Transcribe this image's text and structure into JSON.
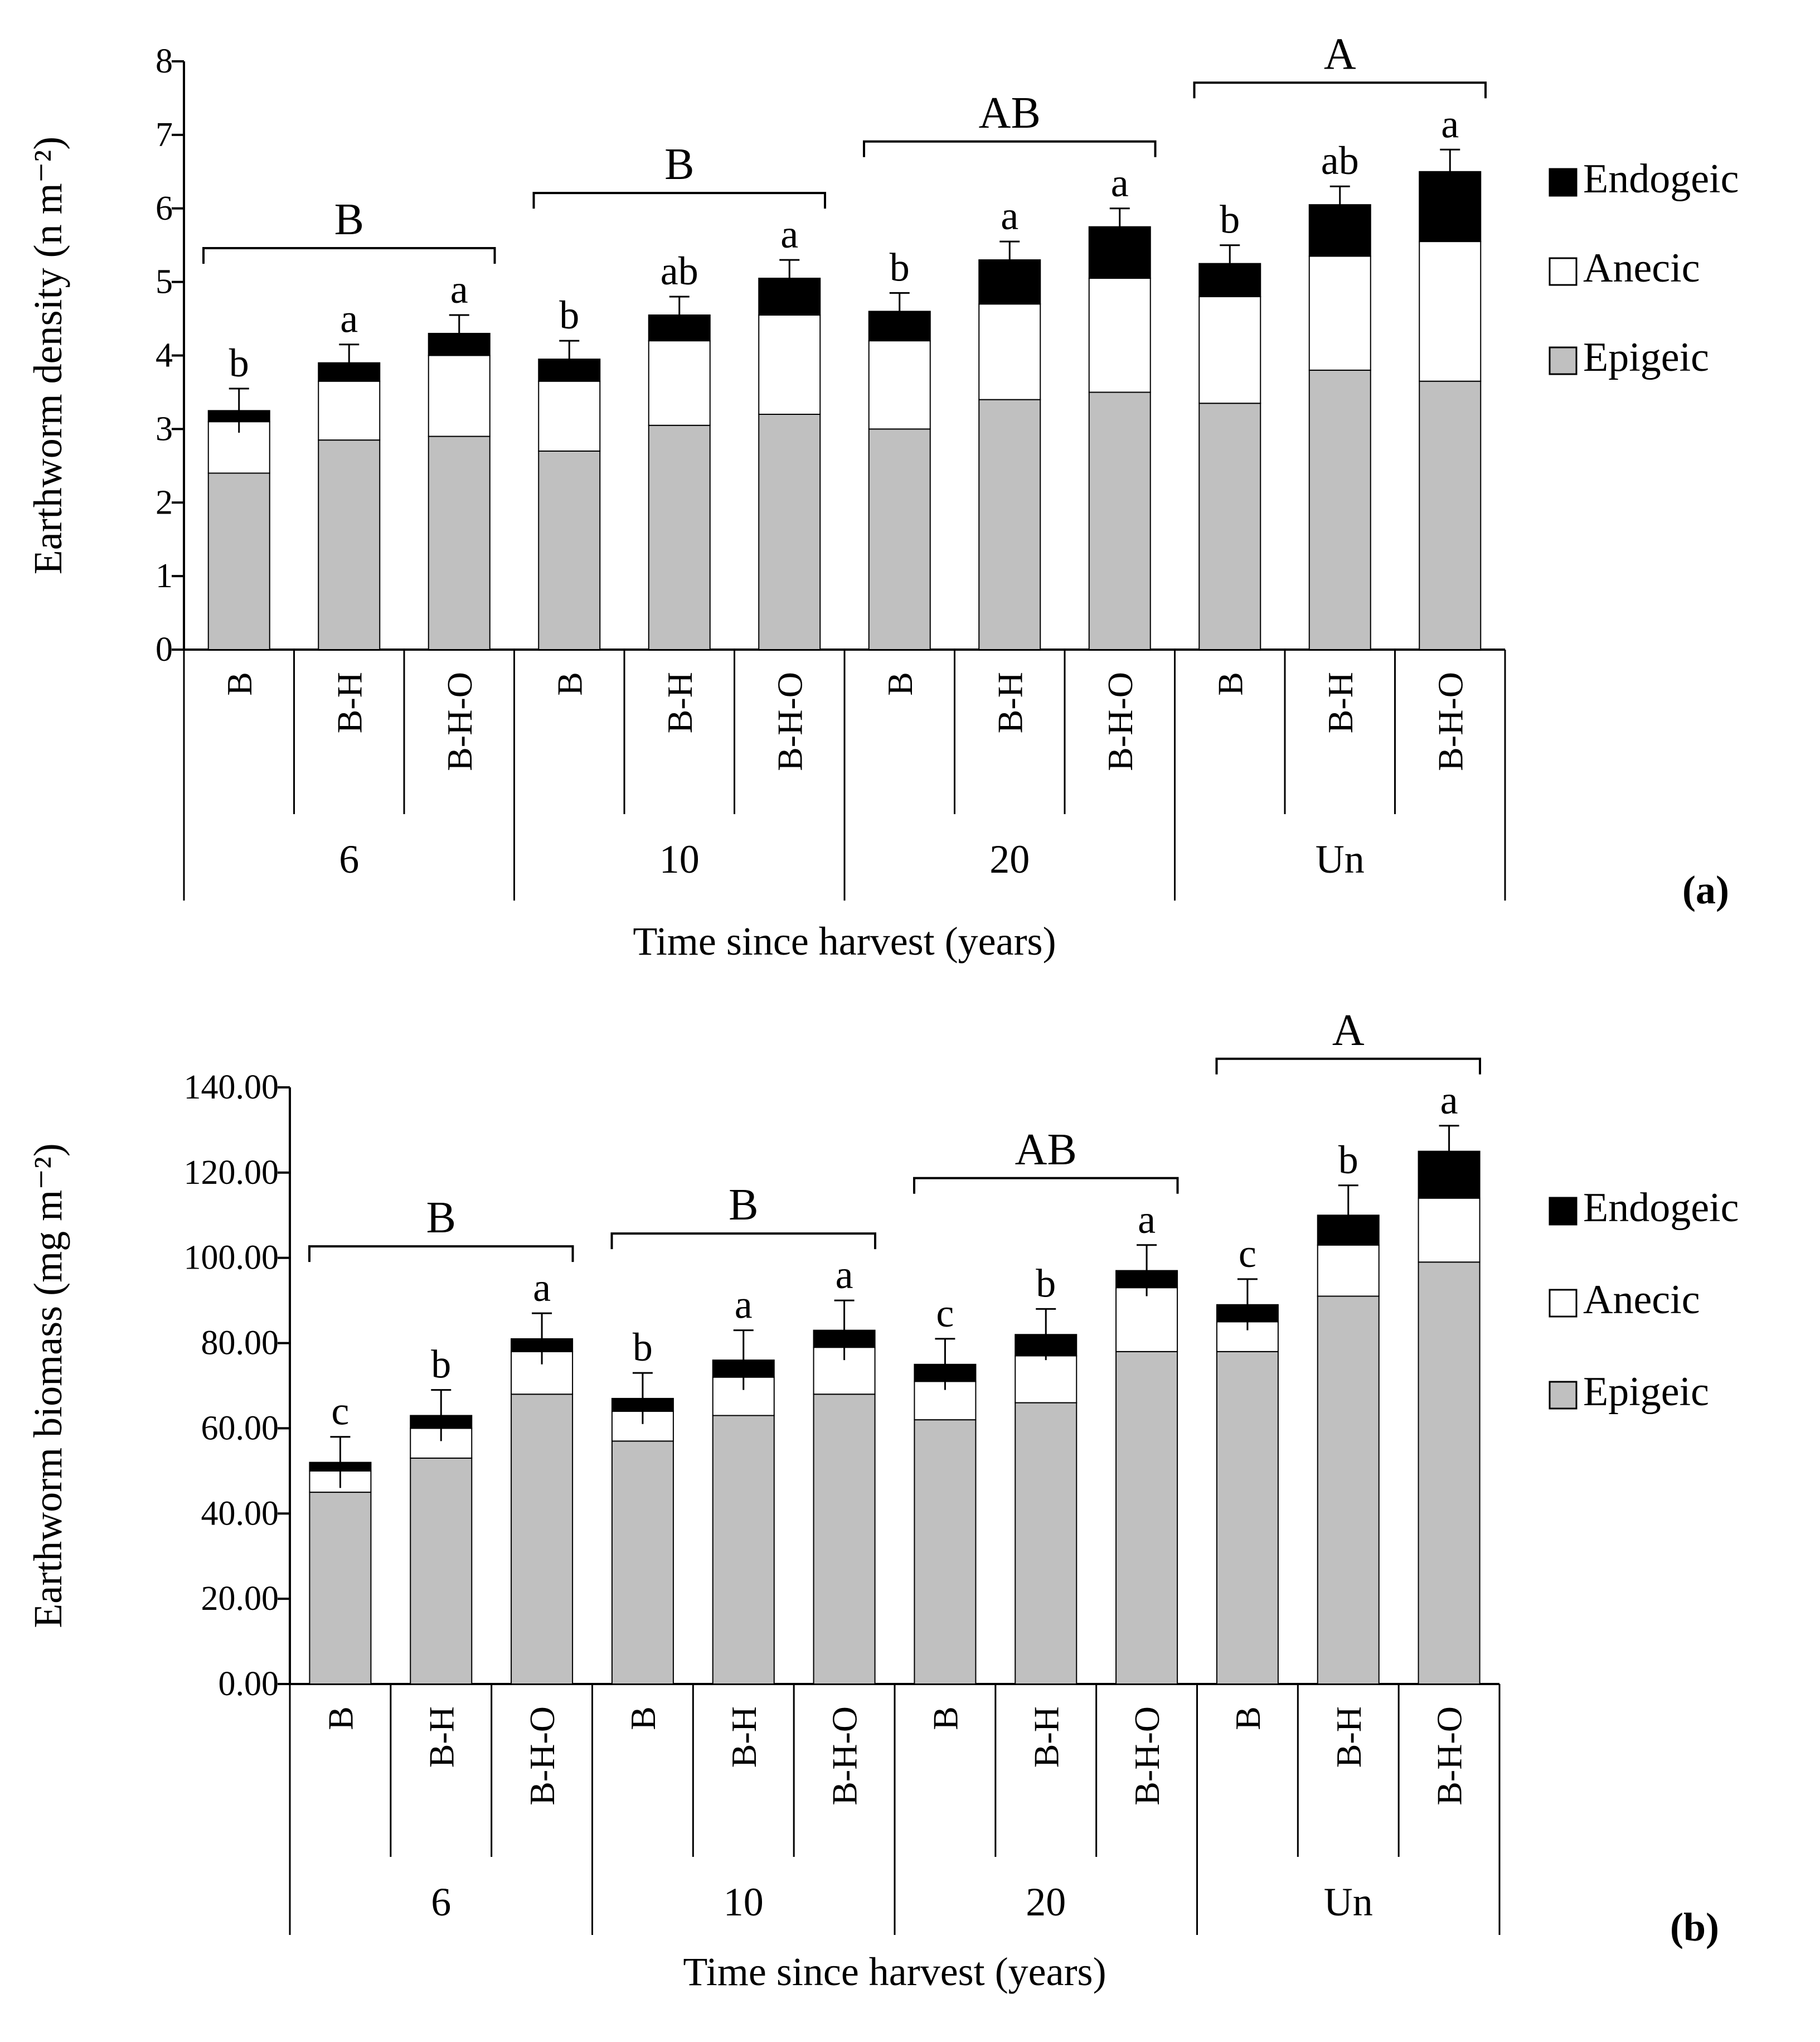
{
  "colors": {
    "epigeic": "#c0c0c0",
    "anecic": "#ffffff",
    "endogeic": "#000000",
    "axis": "#000000"
  },
  "chart_data": [
    {
      "type": "bar",
      "stacked": true,
      "panel_label": "(a)",
      "ylabel": "Earthworm density (n m⁻²)",
      "xlabel": "Time since harvest (years)",
      "ylim": [
        0,
        8
      ],
      "yticks": [
        "0",
        "1",
        "2",
        "3",
        "4",
        "5",
        "6",
        "7",
        "8"
      ],
      "ytick_values": [
        0,
        1,
        2,
        3,
        4,
        5,
        6,
        7,
        8
      ],
      "categories": [
        "B",
        "B-H",
        "B-H-O",
        "B",
        "B-H",
        "B-H-O",
        "B",
        "B-H",
        "B-H-O",
        "B",
        "B-H",
        "B-H-O"
      ],
      "groups": [
        {
          "label": "6",
          "letter": "B"
        },
        {
          "label": "10",
          "letter": "B"
        },
        {
          "label": "20",
          "letter": "AB"
        },
        {
          "label": "Un",
          "letter": "A"
        }
      ],
      "series": [
        {
          "name": "Epigeic",
          "values": [
            2.4,
            2.85,
            2.9,
            2.7,
            3.05,
            3.2,
            3.0,
            3.4,
            3.5,
            3.35,
            3.8,
            3.65
          ]
        },
        {
          "name": "Anecic",
          "values": [
            0.7,
            0.8,
            1.1,
            0.95,
            1.15,
            1.35,
            1.2,
            1.3,
            1.55,
            1.45,
            1.55,
            1.9
          ]
        },
        {
          "name": "Endogeic",
          "values": [
            0.15,
            0.25,
            0.3,
            0.3,
            0.35,
            0.5,
            0.4,
            0.6,
            0.7,
            0.45,
            0.7,
            0.95
          ]
        }
      ],
      "error": [
        0.3,
        0.25,
        0.25,
        0.25,
        0.25,
        0.25,
        0.25,
        0.25,
        0.25,
        0.25,
        0.25,
        0.3
      ],
      "letters": [
        "b",
        "a",
        "a",
        "b",
        "ab",
        "a",
        "b",
        "a",
        "a",
        "b",
        "ab",
        "a"
      ],
      "legend": [
        "Endogeic",
        "Anecic",
        "Epigeic"
      ]
    },
    {
      "type": "bar",
      "stacked": true,
      "panel_label": "(b)",
      "ylabel": "Earthworm biomass (mg m⁻²)",
      "xlabel": "Time since harvest (years)",
      "ylim": [
        0,
        140
      ],
      "yticks": [
        "0.00",
        "20.00",
        "40.00",
        "60.00",
        "80.00",
        "100.00",
        "120.00",
        "140.00"
      ],
      "ytick_values": [
        0,
        20,
        40,
        60,
        80,
        100,
        120,
        140
      ],
      "categories": [
        "B",
        "B-H",
        "B-H-O",
        "B",
        "B-H",
        "B-H-O",
        "B",
        "B-H",
        "B-H-O",
        "B",
        "B-H",
        "B-H-O"
      ],
      "groups": [
        {
          "label": "6",
          "letter": "B"
        },
        {
          "label": "10",
          "letter": "B"
        },
        {
          "label": "20",
          "letter": "AB"
        },
        {
          "label": "Un",
          "letter": "A"
        }
      ],
      "series": [
        {
          "name": "Epigeic",
          "values": [
            45,
            53,
            68,
            57,
            63,
            68,
            62,
            66,
            78,
            78,
            91,
            99
          ]
        },
        {
          "name": "Anecic",
          "values": [
            5,
            7,
            10,
            7,
            9,
            11,
            9,
            11,
            15,
            7,
            12,
            15
          ]
        },
        {
          "name": "Endogeic",
          "values": [
            2,
            3,
            3,
            3,
            4,
            4,
            4,
            5,
            4,
            4,
            7,
            11
          ]
        }
      ],
      "error": [
        6,
        6,
        6,
        6,
        7,
        7,
        6,
        6,
        6,
        6,
        7,
        6
      ],
      "letters": [
        "c",
        "b",
        "a",
        "b",
        "a",
        "a",
        "c",
        "b",
        "a",
        "c",
        "b",
        "a"
      ],
      "legend": [
        "Endogeic",
        "Anecic",
        "Epigeic"
      ]
    }
  ]
}
